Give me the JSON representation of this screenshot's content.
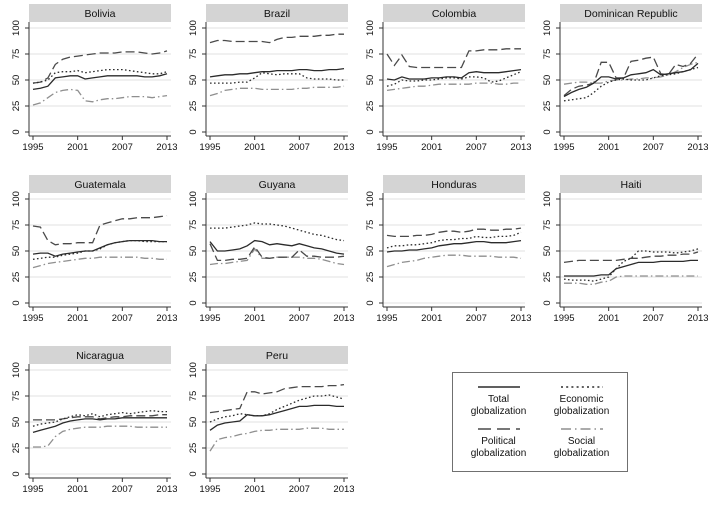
{
  "figure": {
    "background": "#ffffff",
    "panel_title_bg": "#d4d4d4",
    "grid_color": "#e2e2e2",
    "axis_color": "#333333"
  },
  "chart_data": {
    "type": "line",
    "x": [
      1995,
      1996,
      1997,
      1998,
      1999,
      2000,
      2001,
      2002,
      2003,
      2004,
      2005,
      2006,
      2007,
      2008,
      2009,
      2010,
      2011,
      2012,
      2013
    ],
    "xticks": [
      1995,
      2001,
      2007,
      2013
    ],
    "yticks": [
      0,
      25,
      50,
      75,
      100
    ],
    "ylim": [
      0,
      105
    ],
    "grid": "horizontal",
    "panels": [
      {
        "title": "Bolivia",
        "series": {
          "total": [
            41,
            42,
            44,
            52,
            53,
            54,
            54,
            51,
            52,
            53,
            54,
            54,
            54,
            54,
            54,
            53,
            53,
            54,
            56
          ],
          "economic": [
            47,
            48,
            50,
            57,
            58,
            58,
            59,
            57,
            58,
            59,
            60,
            60,
            60,
            59,
            58,
            57,
            56,
            56,
            58
          ],
          "political": [
            47,
            48,
            52,
            65,
            70,
            72,
            73,
            74,
            75,
            76,
            76,
            76,
            77,
            77,
            77,
            76,
            75,
            76,
            78
          ],
          "social": [
            26,
            28,
            33,
            38,
            40,
            41,
            40,
            30,
            29,
            31,
            32,
            32,
            33,
            34,
            34,
            34,
            33,
            34,
            35
          ]
        }
      },
      {
        "title": "Brazil",
        "series": {
          "total": [
            53,
            54,
            55,
            55,
            56,
            56,
            57,
            58,
            58,
            59,
            59,
            59,
            60,
            60,
            59,
            59,
            60,
            60,
            61
          ],
          "economic": [
            47,
            47,
            47,
            47,
            48,
            48,
            52,
            57,
            56,
            55,
            56,
            56,
            56,
            52,
            51,
            51,
            51,
            50,
            50
          ],
          "political": [
            86,
            88,
            88,
            87,
            87,
            87,
            87,
            87,
            86,
            89,
            91,
            91,
            92,
            92,
            92,
            93,
            93,
            94,
            94
          ],
          "social": [
            35,
            37,
            40,
            41,
            42,
            42,
            42,
            41,
            41,
            41,
            41,
            41,
            42,
            42,
            43,
            43,
            43,
            43,
            44
          ]
        }
      },
      {
        "title": "Colombia",
        "series": {
          "total": [
            51,
            50,
            53,
            51,
            51,
            51,
            52,
            52,
            53,
            53,
            52,
            57,
            58,
            57,
            57,
            57,
            58,
            59,
            60
          ],
          "economic": [
            44,
            46,
            50,
            49,
            49,
            50,
            50,
            51,
            52,
            52,
            51,
            53,
            53,
            52,
            48,
            49,
            52,
            55,
            58
          ],
          "political": [
            75,
            64,
            74,
            63,
            62,
            62,
            62,
            62,
            62,
            62,
            62,
            78,
            78,
            79,
            79,
            79,
            80,
            80,
            80
          ],
          "social": [
            40,
            41,
            42,
            43,
            44,
            44,
            45,
            46,
            46,
            46,
            46,
            46,
            47,
            47,
            47,
            46,
            46,
            47,
            47
          ]
        }
      },
      {
        "title": "Dominican Republic",
        "series": {
          "total": [
            34,
            38,
            41,
            43,
            47,
            53,
            53,
            51,
            52,
            55,
            56,
            57,
            60,
            55,
            56,
            57,
            58,
            60,
            66
          ],
          "economic": [
            30,
            31,
            32,
            33,
            38,
            44,
            48,
            50,
            51,
            50,
            50,
            50,
            52,
            54,
            55,
            56,
            58,
            60,
            62
          ],
          "political": [
            35,
            41,
            44,
            45,
            47,
            67,
            67,
            52,
            52,
            68,
            69,
            71,
            72,
            56,
            55,
            65,
            63,
            66,
            75
          ],
          "social": [
            46,
            47,
            48,
            48,
            47,
            47,
            49,
            50,
            50,
            51,
            51,
            52,
            52,
            53,
            55,
            58,
            62,
            65,
            67
          ]
        }
      },
      {
        "title": "Guatemala",
        "series": {
          "total": [
            47,
            48,
            48,
            45,
            47,
            48,
            49,
            50,
            50,
            53,
            56,
            58,
            59,
            60,
            60,
            60,
            60,
            59,
            59
          ],
          "economic": [
            42,
            43,
            44,
            44,
            46,
            47,
            48,
            50,
            50,
            52,
            56,
            58,
            59,
            60,
            60,
            59,
            59,
            59,
            59
          ],
          "political": [
            74,
            73,
            60,
            56,
            57,
            57,
            58,
            58,
            58,
            75,
            77,
            79,
            81,
            81,
            82,
            82,
            82,
            83,
            84
          ],
          "social": [
            34,
            36,
            38,
            39,
            40,
            41,
            42,
            43,
            43,
            44,
            44,
            44,
            44,
            44,
            44,
            43,
            43,
            42,
            42
          ]
        }
      },
      {
        "title": "Guyana",
        "series": {
          "total": [
            59,
            50,
            50,
            51,
            52,
            55,
            60,
            59,
            56,
            57,
            56,
            55,
            57,
            55,
            53,
            52,
            50,
            48,
            47
          ],
          "economic": [
            72,
            72,
            72,
            73,
            74,
            75,
            77,
            76,
            76,
            75,
            74,
            72,
            70,
            68,
            66,
            65,
            63,
            61,
            60
          ],
          "political": [
            57,
            41,
            41,
            42,
            42,
            43,
            54,
            44,
            43,
            44,
            44,
            44,
            51,
            45,
            45,
            44,
            44,
            44,
            45
          ],
          "social": [
            37,
            38,
            38,
            39,
            40,
            41,
            52,
            43,
            43,
            44,
            44,
            44,
            44,
            43,
            43,
            42,
            40,
            38,
            37
          ]
        }
      },
      {
        "title": "Honduras",
        "series": {
          "total": [
            49,
            50,
            50,
            51,
            51,
            52,
            53,
            55,
            56,
            57,
            57,
            58,
            59,
            59,
            58,
            58,
            58,
            59,
            60
          ],
          "economic": [
            53,
            55,
            55,
            56,
            56,
            57,
            58,
            60,
            61,
            61,
            62,
            62,
            64,
            63,
            63,
            64,
            64,
            65,
            68
          ],
          "political": [
            65,
            64,
            64,
            64,
            65,
            65,
            66,
            68,
            69,
            69,
            68,
            69,
            71,
            71,
            70,
            70,
            71,
            71,
            72
          ],
          "social": [
            35,
            37,
            39,
            40,
            41,
            43,
            44,
            45,
            46,
            46,
            46,
            45,
            45,
            45,
            45,
            44,
            44,
            44,
            43
          ]
        }
      },
      {
        "title": "Haiti",
        "series": {
          "total": [
            26,
            26,
            26,
            26,
            26,
            27,
            27,
            33,
            35,
            37,
            39,
            39,
            39,
            40,
            40,
            40,
            40,
            41,
            41
          ],
          "economic": [
            23,
            22,
            22,
            22,
            21,
            23,
            25,
            33,
            40,
            43,
            50,
            50,
            49,
            49,
            49,
            48,
            49,
            50,
            52
          ],
          "political": [
            39,
            40,
            41,
            41,
            41,
            41,
            41,
            41,
            42,
            43,
            43,
            44,
            45,
            45,
            46,
            46,
            47,
            47,
            49
          ],
          "social": [
            19,
            19,
            19,
            18,
            18,
            20,
            21,
            25,
            26,
            26,
            26,
            26,
            26,
            26,
            26,
            26,
            26,
            26,
            26
          ]
        }
      },
      {
        "title": "Nicaragua",
        "series": {
          "total": [
            40,
            42,
            44,
            46,
            49,
            51,
            52,
            53,
            53,
            52,
            53,
            53,
            54,
            54,
            54,
            54,
            54,
            54,
            54
          ],
          "economic": [
            46,
            48,
            49,
            50,
            53,
            55,
            57,
            56,
            58,
            55,
            57,
            58,
            59,
            58,
            59,
            60,
            61,
            60,
            60
          ],
          "political": [
            52,
            52,
            52,
            52,
            53,
            54,
            55,
            55,
            55,
            53,
            54,
            55,
            55,
            56,
            56,
            56,
            56,
            57,
            57
          ],
          "social": [
            26,
            26,
            27,
            36,
            41,
            43,
            44,
            45,
            45,
            45,
            46,
            46,
            46,
            46,
            45,
            45,
            45,
            45,
            45
          ]
        }
      },
      {
        "title": "Peru",
        "series": {
          "total": [
            42,
            47,
            49,
            50,
            51,
            57,
            56,
            56,
            57,
            59,
            61,
            63,
            65,
            65,
            66,
            66,
            66,
            65,
            65
          ],
          "economic": [
            50,
            53,
            55,
            56,
            58,
            57,
            56,
            56,
            58,
            62,
            65,
            68,
            71,
            73,
            75,
            75,
            76,
            74,
            72
          ],
          "political": [
            59,
            60,
            61,
            62,
            63,
            79,
            79,
            77,
            78,
            79,
            82,
            83,
            84,
            84,
            84,
            84,
            85,
            85,
            86
          ],
          "social": [
            22,
            33,
            35,
            36,
            38,
            39,
            41,
            42,
            42,
            43,
            43,
            43,
            43,
            44,
            44,
            44,
            43,
            43,
            43
          ]
        }
      }
    ],
    "legend": {
      "position": "bottom-right",
      "items": [
        {
          "key": "total",
          "label": "Total globalization",
          "style": "solid",
          "color": "#2b2b2b"
        },
        {
          "key": "economic",
          "label": "Economic globalization",
          "style": "dotted",
          "color": "#2b2b2b"
        },
        {
          "key": "political",
          "label": "Political globalization",
          "style": "long-dash",
          "color": "#4a4a4a"
        },
        {
          "key": "social",
          "label": "Social globalization",
          "style": "dash-dot",
          "color": "#8f8f8f"
        }
      ]
    }
  }
}
